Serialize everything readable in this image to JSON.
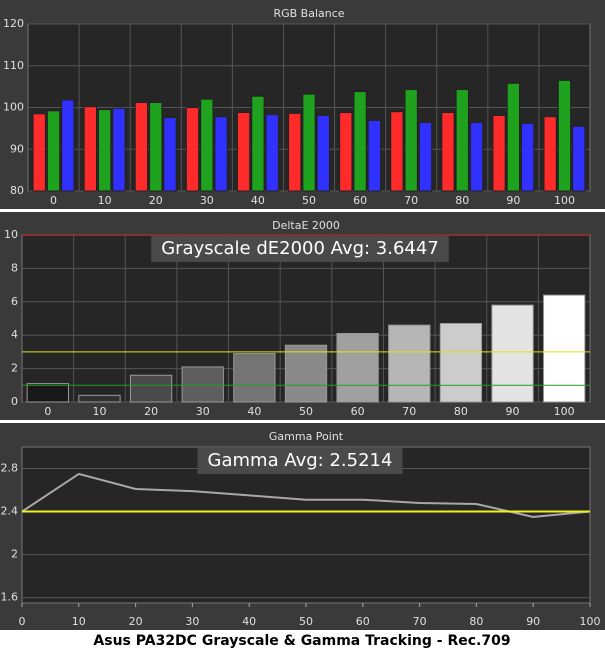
{
  "caption": "Asus PA32DC Grayscale & Gamma Tracking - Rec.709",
  "chart_data": [
    {
      "type": "bar",
      "title": "RGB Balance",
      "categories": [
        "0",
        "10",
        "20",
        "30",
        "40",
        "50",
        "60",
        "70",
        "80",
        "90",
        "100"
      ],
      "series": [
        {
          "name": "Red",
          "color": "#ff2a2a",
          "values": [
            98.5,
            100.2,
            101.2,
            100,
            98.8,
            98.6,
            98.8,
            99,
            98.8,
            98.1,
            97.8
          ]
        },
        {
          "name": "Green",
          "color": "#1fa31f",
          "values": [
            99.2,
            99.5,
            101.2,
            102,
            102.7,
            103.2,
            103.8,
            104.3,
            104.3,
            105.8,
            106.5
          ]
        },
        {
          "name": "Blue",
          "color": "#3030ff",
          "values": [
            101.8,
            99.8,
            97.6,
            97.8,
            98.3,
            98.1,
            96.9,
            96.4,
            96.4,
            96.2,
            95.5
          ]
        }
      ],
      "ylim": [
        80,
        120
      ],
      "yticks": [
        80,
        90,
        100,
        110,
        120
      ],
      "grid": true
    },
    {
      "type": "bar",
      "title": "DeltaE 2000",
      "annotation": "Grayscale dE2000 Avg: 3.6447",
      "categories": [
        "0",
        "10",
        "20",
        "30",
        "40",
        "50",
        "60",
        "70",
        "80",
        "90",
        "100"
      ],
      "values": [
        1.1,
        0.4,
        1.6,
        2.1,
        2.9,
        3.4,
        4.1,
        4.6,
        4.7,
        5.8,
        6.4
      ],
      "colors": [
        "#181818",
        "#303030",
        "#4a4a4a",
        "#5e5e5e",
        "#747474",
        "#8a8a8a",
        "#a0a0a0",
        "#b6b6b6",
        "#cccccc",
        "#e4e4e4",
        "#ffffff"
      ],
      "reference_lines": [
        {
          "value": 10,
          "color": "#e03030"
        },
        {
          "value": 3,
          "color": "#e0e020"
        },
        {
          "value": 1,
          "color": "#20a020"
        }
      ],
      "ylim": [
        0,
        10
      ],
      "yticks": [
        0,
        2,
        4,
        6,
        8,
        10
      ],
      "grid": true
    },
    {
      "type": "line",
      "title": "Gamma Point",
      "annotation": "Gamma Avg: 2.5214",
      "x": [
        0,
        10,
        20,
        30,
        40,
        50,
        60,
        70,
        80,
        90,
        100
      ],
      "values": [
        2.4,
        2.75,
        2.61,
        2.59,
        2.55,
        2.51,
        2.51,
        2.48,
        2.47,
        2.35,
        2.4
      ],
      "color": "#a8a8a8",
      "reference_lines": [
        {
          "value": 2.4,
          "color": "#f0f020"
        }
      ],
      "xlim": [
        0,
        100
      ],
      "xticks": [
        0,
        10,
        20,
        30,
        40,
        50,
        60,
        70,
        80,
        90,
        100
      ],
      "ylim": [
        1.55,
        3.0
      ],
      "yticks": [
        1.6,
        2,
        2.4,
        2.8
      ],
      "grid": true
    }
  ]
}
